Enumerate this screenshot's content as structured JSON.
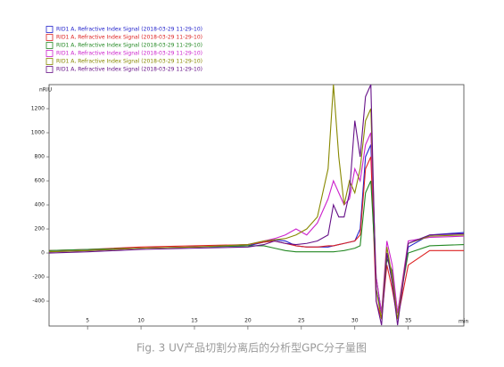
{
  "chart_data": {
    "type": "line",
    "caption": "Fig. 3 UV产品切割分离后的分析型GPC分子量图",
    "y_label": "nRIU",
    "x_label": "min",
    "x": [
      1.4,
      5,
      10,
      15,
      20,
      21.5,
      22.5,
      23.5,
      24.5,
      25.5,
      26.5,
      27.5,
      28,
      28.5,
      29,
      29.5,
      30,
      30.5,
      31,
      31.5,
      32,
      32.5,
      33,
      33.5,
      34,
      35,
      37,
      40.2
    ],
    "xlim": [
      1.4,
      40.2
    ],
    "xticks": [
      5,
      10,
      15,
      20,
      25,
      30,
      35
    ],
    "ylim": [
      -607,
      1400
    ],
    "yticks": [
      -400,
      -200,
      0,
      200,
      400,
      600,
      800,
      1000,
      1200
    ],
    "series": [
      {
        "name": "RID1 A, Refractive Index Signal (2018-03-29 11-29-10)",
        "color": "#2222cc",
        "values": [
          10,
          20,
          40,
          50,
          60,
          90,
          110,
          100,
          60,
          50,
          50,
          50,
          60,
          70,
          80,
          90,
          100,
          200,
          800,
          900,
          -300,
          -500,
          0,
          -200,
          -500,
          50,
          150,
          170
        ]
      },
      {
        "name": "RID1 A, Refractive Index Signal (2018-03-29 11-29-10)",
        "color": "#dd2222",
        "values": [
          20,
          30,
          50,
          60,
          70,
          90,
          100,
          80,
          60,
          50,
          50,
          60,
          60,
          70,
          80,
          90,
          100,
          150,
          700,
          800,
          -400,
          -550,
          -100,
          -300,
          -550,
          -100,
          20,
          20
        ]
      },
      {
        "name": "RID1 A, Refractive Index Signal (2018-03-29 11-29-10)",
        "color": "#228822",
        "values": [
          20,
          30,
          40,
          50,
          60,
          60,
          40,
          20,
          10,
          10,
          10,
          10,
          10,
          15,
          20,
          30,
          40,
          60,
          500,
          600,
          -200,
          -500,
          -50,
          -150,
          -500,
          0,
          60,
          70
        ]
      },
      {
        "name": "RID1 A, Refractive Index Signal (2018-03-29 11-29-10)",
        "color": "#cc22cc",
        "values": [
          10,
          20,
          40,
          50,
          70,
          100,
          120,
          150,
          200,
          150,
          250,
          450,
          600,
          500,
          400,
          450,
          700,
          600,
          900,
          1000,
          -200,
          -500,
          100,
          -100,
          -500,
          100,
          130,
          140
        ]
      },
      {
        "name": "RID1 A, Refractive Index Signal (2018-03-29 11-29-10)",
        "color": "#888800",
        "values": [
          10,
          20,
          40,
          50,
          70,
          100,
          110,
          120,
          150,
          200,
          300,
          700,
          1400,
          800,
          400,
          600,
          500,
          700,
          1100,
          1200,
          -300,
          -550,
          50,
          -200,
          -550,
          80,
          140,
          150
        ]
      },
      {
        "name": "RID1 A, Refractive Index Signal (2018-03-29 11-29-10)",
        "color": "#661188",
        "values": [
          0,
          10,
          30,
          40,
          50,
          70,
          100,
          80,
          70,
          80,
          100,
          150,
          400,
          300,
          300,
          500,
          1100,
          800,
          1300,
          1400,
          -400,
          -600,
          0,
          -250,
          -600,
          80,
          150,
          160
        ]
      }
    ]
  }
}
